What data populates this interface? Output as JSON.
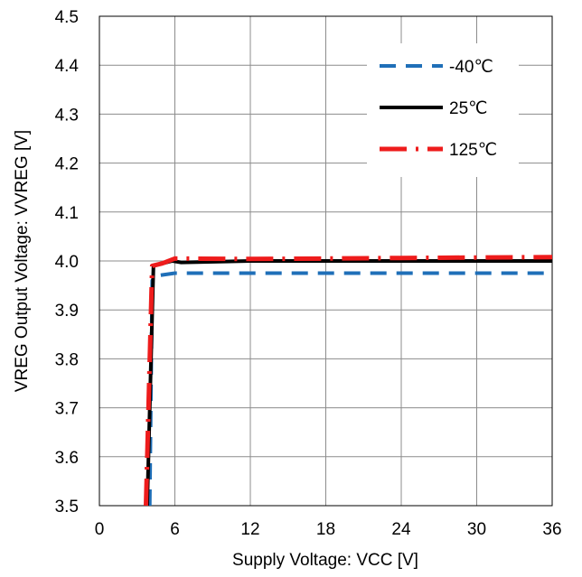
{
  "chart_data": {
    "type": "line",
    "xlabel": "Supply Voltage: VCC [V]",
    "ylabel": "VREG Output Voltage: VVREG [V]",
    "xlim": [
      0,
      36
    ],
    "ylim": [
      3.5,
      4.5
    ],
    "x_ticks": [
      "0",
      "6",
      "12",
      "18",
      "24",
      "30",
      "36"
    ],
    "y_ticks": [
      "3.5",
      "3.6",
      "3.7",
      "3.8",
      "3.9",
      "4.0",
      "4.1",
      "4.2",
      "4.3",
      "4.4",
      "4.5"
    ],
    "grid": true,
    "legend_position": "top-right",
    "series": [
      {
        "name": "-40℃",
        "color": "#1f6fb8",
        "dash": "dashed",
        "points": [
          [
            4.0,
            3.5
          ],
          [
            4.2,
            3.96
          ],
          [
            4.6,
            3.97
          ],
          [
            6,
            3.975
          ],
          [
            12,
            3.975
          ],
          [
            18,
            3.975
          ],
          [
            24,
            3.975
          ],
          [
            30,
            3.975
          ],
          [
            36,
            3.975
          ]
        ]
      },
      {
        "name": "25℃",
        "color": "#000000",
        "dash": "solid",
        "points": [
          [
            3.8,
            3.5
          ],
          [
            4.3,
            3.99
          ],
          [
            5.8,
            4.0
          ],
          [
            6.5,
            3.997
          ],
          [
            12,
            4.0
          ],
          [
            18,
            4.0
          ],
          [
            24,
            4.0
          ],
          [
            30,
            4.0
          ],
          [
            36,
            4.0
          ]
        ]
      },
      {
        "name": "125℃",
        "color": "#ee1c1c",
        "dash": "dashdot",
        "points": [
          [
            3.7,
            3.5
          ],
          [
            4.2,
            3.99
          ],
          [
            5,
            3.995
          ],
          [
            6,
            4.005
          ],
          [
            12,
            4.004
          ],
          [
            18,
            4.005
          ],
          [
            24,
            4.006
          ],
          [
            30,
            4.007
          ],
          [
            36,
            4.008
          ]
        ]
      }
    ]
  }
}
